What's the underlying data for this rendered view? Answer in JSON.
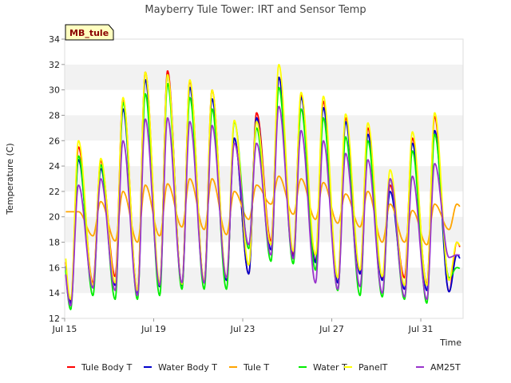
{
  "chart_data": {
    "type": "line",
    "title": "Mayberry Tule Tower: IRT and Sensor Temp",
    "xlabel": "Time",
    "ylabel": "Temperature (C)",
    "ylim": [
      12,
      34
    ],
    "yticks": [
      12,
      14,
      16,
      18,
      20,
      22,
      24,
      26,
      28,
      30,
      32,
      34
    ],
    "xlim": [
      15,
      32.9
    ],
    "xticks": [
      {
        "day": 15,
        "label": "Jul 15"
      },
      {
        "day": 19,
        "label": "Jul 19"
      },
      {
        "day": 23,
        "label": "Jul 23"
      },
      {
        "day": 27,
        "label": "Jul 27"
      },
      {
        "day": 31,
        "label": "Jul 31"
      }
    ],
    "grid": "horizontal bands",
    "site_tag": "MB_tule",
    "legend_position": "bottom",
    "days": [
      15,
      16,
      17,
      18,
      19,
      20,
      21,
      22,
      23,
      24,
      25,
      26,
      27,
      28,
      29,
      30,
      31,
      32
    ],
    "series": [
      {
        "name": "Tule Body T",
        "color": "#ff0000",
        "mins": [
          13.3,
          14.8,
          15.3,
          14.2,
          14.5,
          14.6,
          14.8,
          15.0,
          15.5,
          18.1,
          17.0,
          16.5,
          14.8,
          15.5,
          15.1,
          15.2,
          14.7,
          14.1
        ],
        "maxs": [
          25.5,
          24.4,
          29.3,
          31.4,
          31.5,
          30.7,
          30.0,
          26.2,
          28.2,
          31.0,
          29.6,
          29.1,
          27.8,
          27.0,
          22.5,
          26.2,
          27.9,
          18.0
        ]
      },
      {
        "name": "Water Body T",
        "color": "#0000cc",
        "mins": [
          13.2,
          14.4,
          14.6,
          13.9,
          14.5,
          14.6,
          14.8,
          15.0,
          15.5,
          17.4,
          16.8,
          16.4,
          14.8,
          15.5,
          15.0,
          14.3,
          14.2,
          14.1
        ],
        "maxs": [
          24.5,
          23.8,
          28.5,
          30.8,
          31.2,
          30.2,
          29.3,
          26.2,
          27.8,
          31.0,
          29.4,
          28.6,
          27.5,
          26.5,
          22.0,
          25.8,
          26.8,
          17.0
        ]
      },
      {
        "name": "Tule T",
        "color": "#ffa500",
        "mins": [
          20.4,
          18.5,
          18.1,
          18.0,
          18.5,
          19.2,
          19.0,
          18.6,
          19.8,
          21.0,
          20.2,
          19.8,
          19.5,
          19.2,
          18.0,
          18.0,
          17.8,
          19.0
        ],
        "maxs": [
          20.4,
          21.2,
          22.0,
          22.5,
          22.6,
          23.0,
          23.0,
          22.0,
          22.5,
          23.2,
          23.0,
          22.7,
          21.8,
          22.0,
          21.0,
          20.5,
          21.0,
          21.0
        ]
      },
      {
        "name": "Water T",
        "color": "#00ee00",
        "mins": [
          12.7,
          13.8,
          13.5,
          13.5,
          13.8,
          14.3,
          14.3,
          14.3,
          17.5,
          16.5,
          16.3,
          15.8,
          14.2,
          13.8,
          13.7,
          13.5,
          13.2,
          15.2
        ],
        "maxs": [
          24.8,
          24.1,
          29.0,
          29.7,
          30.5,
          29.4,
          28.5,
          27.5,
          27.0,
          30.2,
          28.5,
          27.8,
          26.3,
          26.0,
          23.0,
          25.2,
          26.5,
          16.0
        ]
      },
      {
        "name": "PanelT",
        "color": "#ffff00",
        "mins": [
          13.5,
          14.6,
          14.8,
          14.2,
          14.8,
          14.7,
          14.9,
          15.2,
          16.2,
          17.8,
          17.3,
          17.0,
          15.2,
          15.8,
          15.3,
          14.6,
          14.6,
          15.0
        ],
        "maxs": [
          26.0,
          24.6,
          29.4,
          31.4,
          31.2,
          30.8,
          30.0,
          27.6,
          27.5,
          32.0,
          29.8,
          29.5,
          28.1,
          27.4,
          23.7,
          26.7,
          28.2,
          18.0
        ]
      },
      {
        "name": "AM25T",
        "color": "#9933cc",
        "mins": [
          13.0,
          14.4,
          14.2,
          13.8,
          14.6,
          14.8,
          14.8,
          15.2,
          17.8,
          17.0,
          16.7,
          14.8,
          14.3,
          14.5,
          14.0,
          13.7,
          13.5,
          16.8
        ],
        "maxs": [
          22.5,
          23.0,
          26.0,
          27.7,
          27.8,
          27.5,
          27.2,
          25.8,
          25.8,
          28.7,
          26.8,
          26.0,
          25.0,
          24.5,
          23.0,
          23.2,
          24.2,
          17.0
        ]
      }
    ]
  }
}
